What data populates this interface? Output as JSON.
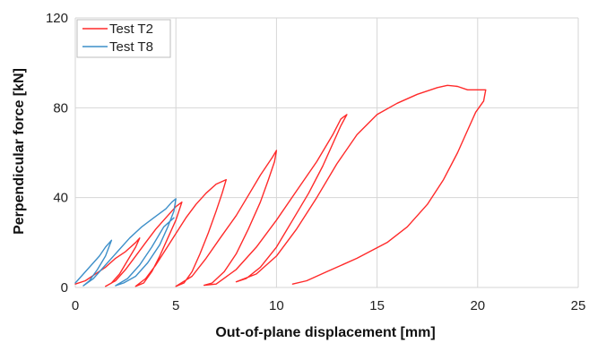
{
  "chart_data": {
    "type": "line",
    "title": "",
    "xlabel": "Out-of-plane displacement [mm]",
    "ylabel": "Perpendicular force [kN]",
    "xlim": [
      0,
      25
    ],
    "ylim": [
      0,
      120
    ],
    "xticks": [
      "0",
      "5",
      "10",
      "15",
      "20",
      "25"
    ],
    "yticks": [
      "0",
      "40",
      "80",
      "120"
    ],
    "grid": true,
    "legend_position": "top-left",
    "series": [
      {
        "name": "Test T2",
        "color": "#ff2a2a",
        "points": [
          [
            0.0,
            1.5
          ],
          [
            0.5,
            3
          ],
          [
            1.0,
            6
          ],
          [
            1.5,
            9
          ],
          [
            2.0,
            13
          ],
          [
            2.5,
            16
          ],
          [
            3.0,
            20
          ],
          [
            3.2,
            22
          ],
          [
            3.0,
            18
          ],
          [
            2.6,
            12
          ],
          [
            2.2,
            6
          ],
          [
            1.8,
            2
          ],
          [
            1.5,
            0.5
          ],
          [
            2.0,
            3
          ],
          [
            2.5,
            8
          ],
          [
            3.0,
            14
          ],
          [
            3.5,
            20
          ],
          [
            4.0,
            26
          ],
          [
            4.5,
            31
          ],
          [
            5.0,
            36
          ],
          [
            5.3,
            38
          ],
          [
            5.0,
            30
          ],
          [
            4.6,
            22
          ],
          [
            4.2,
            14
          ],
          [
            3.8,
            7
          ],
          [
            3.4,
            2
          ],
          [
            3.0,
            0.5
          ],
          [
            3.5,
            4
          ],
          [
            4.0,
            10
          ],
          [
            4.5,
            17
          ],
          [
            5.0,
            24
          ],
          [
            5.5,
            31
          ],
          [
            6.0,
            37
          ],
          [
            6.5,
            42
          ],
          [
            7.0,
            46
          ],
          [
            7.5,
            48
          ],
          [
            7.3,
            42
          ],
          [
            7.0,
            34
          ],
          [
            6.6,
            24
          ],
          [
            6.2,
            15
          ],
          [
            5.8,
            7
          ],
          [
            5.4,
            2
          ],
          [
            5.0,
            0.5
          ],
          [
            5.8,
            5
          ],
          [
            6.5,
            13
          ],
          [
            7.2,
            22
          ],
          [
            8.0,
            32
          ],
          [
            8.6,
            41
          ],
          [
            9.2,
            50
          ],
          [
            9.8,
            58
          ],
          [
            10.0,
            61
          ],
          [
            9.9,
            56
          ],
          [
            9.6,
            48
          ],
          [
            9.2,
            38
          ],
          [
            8.6,
            26
          ],
          [
            8.0,
            15
          ],
          [
            7.4,
            7
          ],
          [
            6.8,
            2
          ],
          [
            6.4,
            1
          ],
          [
            7.0,
            1.5
          ],
          [
            8.0,
            8
          ],
          [
            9.0,
            18
          ],
          [
            10.0,
            30
          ],
          [
            11.0,
            43
          ],
          [
            12.0,
            56
          ],
          [
            12.8,
            68
          ],
          [
            13.2,
            75
          ],
          [
            13.5,
            77
          ],
          [
            13.2,
            72
          ],
          [
            12.8,
            64
          ],
          [
            12.3,
            54
          ],
          [
            11.6,
            42
          ],
          [
            10.8,
            30
          ],
          [
            10.0,
            18
          ],
          [
            9.2,
            9
          ],
          [
            8.5,
            4
          ],
          [
            8.0,
            2.5
          ],
          [
            9.0,
            6
          ],
          [
            10.0,
            14
          ],
          [
            11.0,
            26
          ],
          [
            12.0,
            40
          ],
          [
            13.0,
            55
          ],
          [
            14.0,
            68
          ],
          [
            15.0,
            77
          ],
          [
            16.0,
            82
          ],
          [
            17.0,
            86
          ],
          [
            18.0,
            89
          ],
          [
            18.5,
            90
          ],
          [
            19.0,
            89.5
          ],
          [
            19.5,
            88
          ],
          [
            20.0,
            88
          ],
          [
            20.4,
            88
          ],
          [
            20.3,
            83
          ],
          [
            19.9,
            78
          ],
          [
            19.5,
            70
          ],
          [
            19.0,
            60
          ],
          [
            18.3,
            48
          ],
          [
            17.5,
            37
          ],
          [
            16.5,
            27
          ],
          [
            15.5,
            20
          ],
          [
            14.0,
            13
          ],
          [
            12.5,
            7
          ],
          [
            11.5,
            3
          ],
          [
            10.8,
            1.5
          ]
        ]
      },
      {
        "name": "Test T8",
        "color": "#3d8fc9",
        "points": [
          [
            0.0,
            2
          ],
          [
            0.3,
            5
          ],
          [
            0.6,
            8
          ],
          [
            0.9,
            11
          ],
          [
            1.2,
            14
          ],
          [
            1.5,
            18
          ],
          [
            1.8,
            21
          ],
          [
            1.5,
            14
          ],
          [
            1.1,
            8
          ],
          [
            0.7,
            3
          ],
          [
            0.4,
            0.8
          ],
          [
            0.9,
            4
          ],
          [
            1.5,
            10
          ],
          [
            2.1,
            16
          ],
          [
            2.7,
            22
          ],
          [
            3.3,
            27
          ],
          [
            3.9,
            31
          ],
          [
            4.5,
            35
          ],
          [
            4.8,
            38
          ],
          [
            5.0,
            39.5
          ],
          [
            4.9,
            34
          ],
          [
            4.6,
            27
          ],
          [
            4.2,
            19
          ],
          [
            3.6,
            11
          ],
          [
            3.0,
            5
          ],
          [
            2.4,
            2
          ],
          [
            2.0,
            0.8
          ],
          [
            2.6,
            4
          ],
          [
            3.2,
            10
          ],
          [
            3.8,
            18
          ],
          [
            4.4,
            27
          ],
          [
            4.9,
            31
          ]
        ]
      }
    ]
  }
}
